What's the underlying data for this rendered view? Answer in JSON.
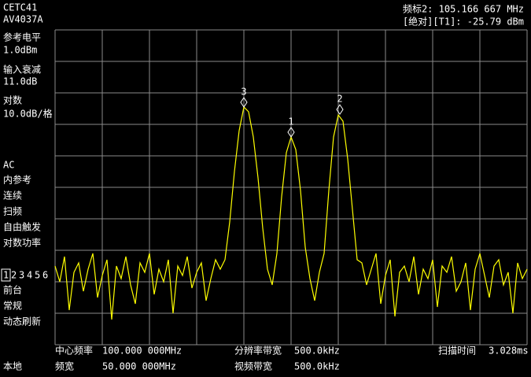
{
  "header": {
    "model_line1": "CETC41",
    "model_line2": "AV4037A",
    "marker_readout": "频标2: 105.166 667 MHz",
    "marker_level": "[绝对][T1]: -25.79 dBm"
  },
  "left_panel": {
    "ref_level_label": "参考电平",
    "ref_level": "1.0dBm",
    "atten_label": "输入衰减",
    "atten": "11.0dB",
    "scale_label": "对数",
    "scale": "10.0dB/格",
    "coupling": "AC",
    "reference": "内参考",
    "sweep_mode": "连续",
    "sweep": "扫频",
    "trigger": "自由触发",
    "detector": "对数功率",
    "traces": [
      {
        "label": "1",
        "color": "#ffffff"
      },
      {
        "label": "2",
        "color": "#33cc33"
      },
      {
        "label": "3",
        "color": "#33aaff"
      },
      {
        "label": "4",
        "color": "#3355ff"
      },
      {
        "label": "5",
        "color": "#cc33cc"
      },
      {
        "label": "6",
        "color": "#ff4477"
      }
    ],
    "display": "前台",
    "mode": "常规",
    "refresh": "动态刷新",
    "local": "本地"
  },
  "footer": {
    "center_label": "中心频率",
    "center": "100.000 000MHz",
    "span_label": "频宽",
    "span": "50.000 000MHz",
    "rbw_label": "分辨率带宽",
    "rbw": "500.0kHz",
    "vbw_label": "视频带宽",
    "vbw": "500.0kHz",
    "sweep_time_label": "扫描时间",
    "sweep_time": "3.028ms"
  },
  "chart_data": {
    "type": "line",
    "color": "#ffff00",
    "grid": true,
    "xlim": [
      75,
      125
    ],
    "ylim": [
      -99,
      1
    ],
    "xticks": [
      75,
      80,
      85,
      90,
      95,
      100,
      105,
      110,
      115,
      120,
      125
    ],
    "yticks": [
      -99,
      -89,
      -79,
      -69,
      -59,
      -49,
      -39,
      -29,
      -19,
      -9,
      1
    ],
    "x": [
      75,
      75.5,
      76,
      76.5,
      77,
      77.5,
      78,
      78.5,
      79,
      79.5,
      80,
      80.5,
      81,
      81.5,
      82,
      82.5,
      83,
      83.5,
      84,
      84.5,
      85,
      85.5,
      86,
      86.5,
      87,
      87.5,
      88,
      88.5,
      89,
      89.5,
      90,
      90.5,
      91,
      91.5,
      92,
      92.5,
      93,
      93.5,
      94,
      94.5,
      95,
      95.5,
      96,
      96.5,
      97,
      97.5,
      98,
      98.5,
      99,
      99.5,
      100,
      100.5,
      101,
      101.5,
      102,
      102.5,
      103,
      103.5,
      104,
      104.5,
      105,
      105.5,
      106,
      106.5,
      107,
      107.5,
      108,
      108.5,
      109,
      109.5,
      110,
      110.5,
      111,
      111.5,
      112,
      112.5,
      113,
      113.5,
      114,
      114.5,
      115,
      115.5,
      116,
      116.5,
      117,
      117.5,
      118,
      118.5,
      119,
      119.5,
      120,
      120.5,
      121,
      121.5,
      122,
      122.5,
      123,
      123.5,
      124,
      124.5,
      125
    ],
    "values": [
      -74,
      -79,
      -71,
      -88,
      -76,
      -73,
      -82,
      -75,
      -70,
      -84,
      -77,
      -72,
      -91,
      -74,
      -78,
      -71,
      -80,
      -86,
      -73,
      -76,
      -70,
      -83,
      -75,
      -79,
      -72,
      -89,
      -74,
      -77,
      -71,
      -81,
      -76,
      -73,
      -85,
      -78,
      -72,
      -75,
      -72,
      -60,
      -44,
      -31,
      -23.5,
      -25,
      -33,
      -46,
      -62,
      -75,
      -80,
      -70,
      -52,
      -38,
      -33,
      -37,
      -50,
      -68,
      -78,
      -85,
      -76,
      -70,
      -50,
      -33,
      -26,
      -28,
      -40,
      -56,
      -72,
      -73,
      -80,
      -75,
      -70,
      -86,
      -77,
      -72,
      -90,
      -76,
      -74,
      -79,
      -71,
      -83,
      -75,
      -78,
      -72,
      -87,
      -74,
      -76,
      -71,
      -82,
      -79,
      -73,
      -88,
      -75,
      -70,
      -77,
      -84,
      -74,
      -72,
      -80,
      -76,
      -89,
      -73,
      -78,
      -75
    ],
    "markers": [
      {
        "label": "1",
        "x": 100,
        "y": -33
      },
      {
        "label": "2",
        "x": 105.166667,
        "y": -25.79
      },
      {
        "label": "3",
        "x": 95,
        "y": -23.5
      }
    ]
  }
}
